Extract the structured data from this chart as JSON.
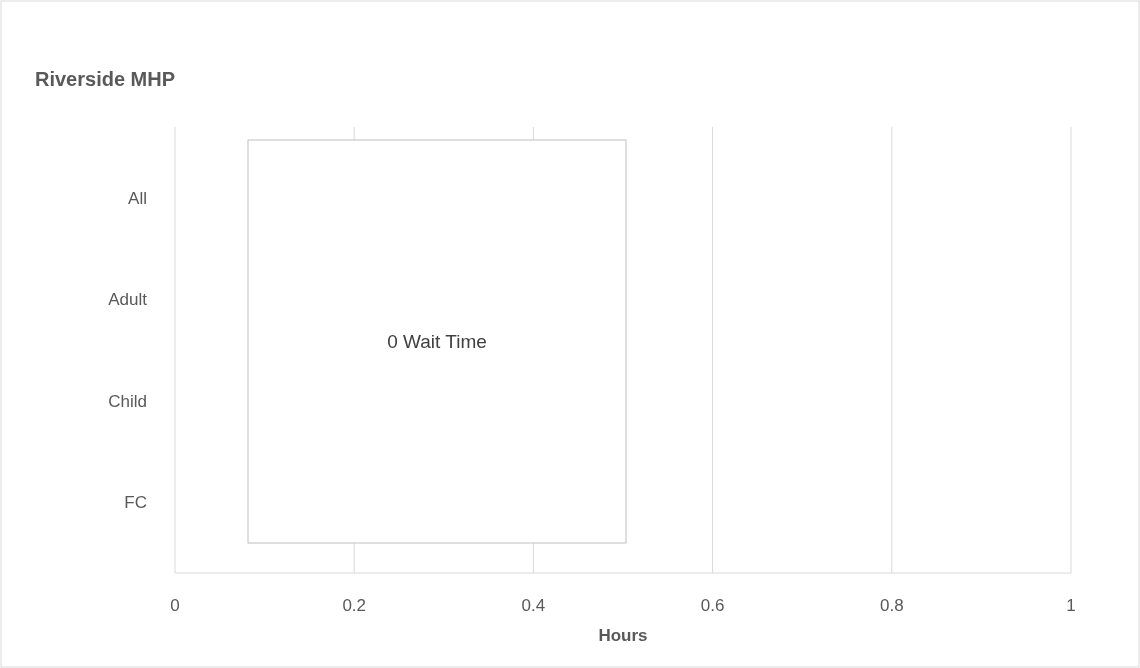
{
  "chart_data": {
    "type": "bar",
    "orientation": "horizontal",
    "title": "Riverside MHP",
    "xlabel": "Hours",
    "categories": [
      "All",
      "Adult",
      "Child",
      "FC"
    ],
    "values": [
      0,
      0,
      0,
      0
    ],
    "xlim": [
      0,
      1
    ],
    "xticks": [
      0,
      0.2,
      0.4,
      0.6,
      0.8,
      1
    ],
    "grid": "x",
    "annotations": [
      "0 Wait Time"
    ]
  }
}
